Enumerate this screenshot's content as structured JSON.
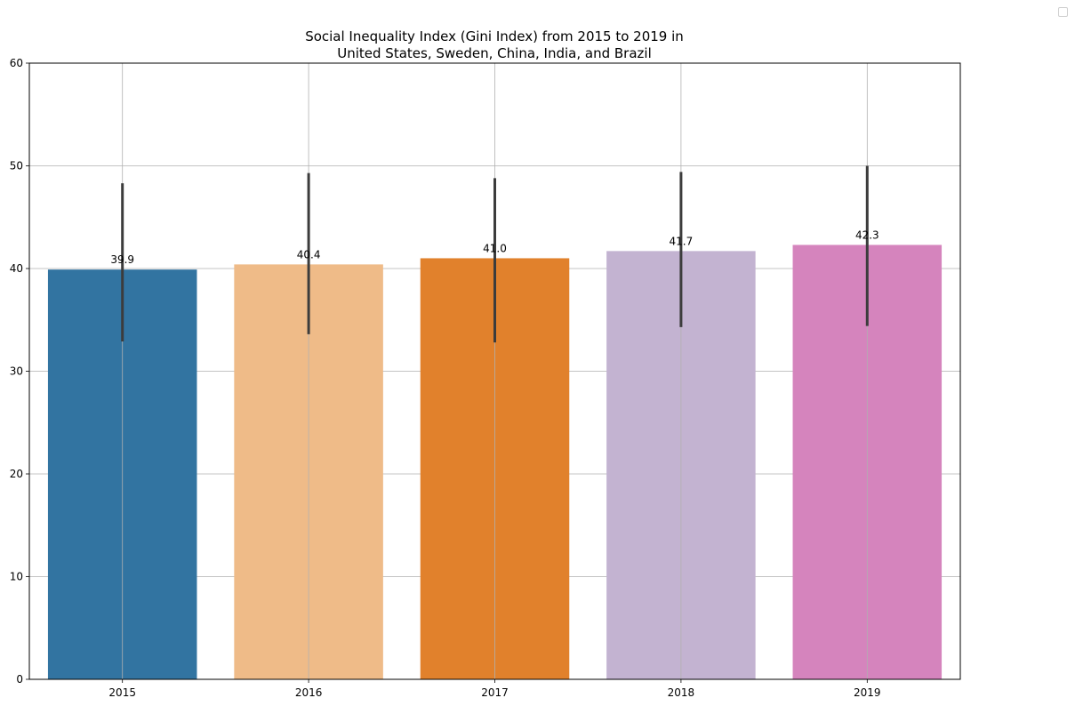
{
  "chart_data": {
    "type": "bar",
    "title_lines": [
      "Social Inequality Index (Gini Index) from 2015 to 2019 in",
      "United States, Sweden, China, India, and Brazil"
    ],
    "xlabel": "",
    "ylabel": "",
    "categories": [
      "2015",
      "2016",
      "2017",
      "2018",
      "2019"
    ],
    "values": [
      39.9,
      40.4,
      41.0,
      41.7,
      42.3
    ],
    "value_labels": [
      "39.9",
      "40.4",
      "41.0",
      "41.7",
      "42.3"
    ],
    "error_low": [
      32.9,
      33.6,
      32.8,
      34.3,
      34.4
    ],
    "error_high": [
      48.3,
      49.3,
      48.8,
      49.4,
      50.0
    ],
    "colors": [
      "#3274a1",
      "#efbb88",
      "#e1812c",
      "#c3b3d1",
      "#d584bd"
    ],
    "ylim": [
      0,
      60
    ],
    "yticks": [
      "0",
      "10",
      "20",
      "30",
      "40",
      "50",
      "60"
    ],
    "grid": true,
    "legend": "top-right, empty"
  }
}
